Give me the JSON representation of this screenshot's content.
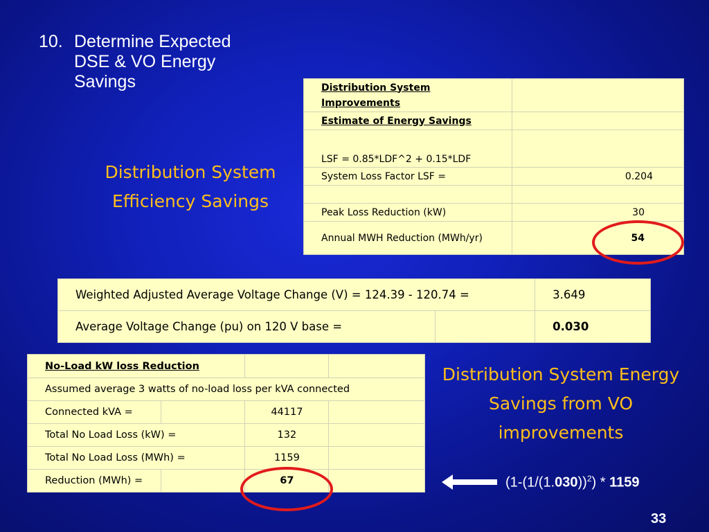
{
  "heading": {
    "number": "10.",
    "text": "Determine Expected DSE & VO Energy Savings"
  },
  "dse_label": "Distribution System Efficiency Savings",
  "vo_label": "Distribution System Energy Savings from VO improvements",
  "dse_table": {
    "title": "Distribution System Improvements",
    "subtitle": "Estimate of Energy Savings",
    "formula": "LSF = 0.85*LDF^2 + 0.15*LDF",
    "lsf_label": "System Loss Factor LSF =",
    "lsf_value": "0.204",
    "peak_label": "Peak Loss Reduction (kW)",
    "peak_value": "30",
    "annual_label": "Annual MWH Reduction (MWh/yr)",
    "annual_value": "54"
  },
  "voltage_table": {
    "row1_label": "Weighted Adjusted Average Voltage Change (V) = 124.39 - 120.74 =",
    "row1_value": "3.649",
    "row2_label": "Average Voltage Change (pu) on 120 V base =",
    "row2_value": "0.030"
  },
  "noload_table": {
    "title": "No-Load kW loss Reduction",
    "assumption": "Assumed average 3 watts of no-load loss per kVA connected",
    "kva_label": "Connected kVA =",
    "kva_value": "44117",
    "kw_label": "Total No Load Loss (kW) =",
    "kw_value": "132",
    "mwh_label": "Total No Load Loss (MWh) =",
    "mwh_value": "1159",
    "reduction_label": "Reduction (MWh) =",
    "reduction_value": "67"
  },
  "formula": {
    "part1": "(1-(1/(1.",
    "bold1": "030",
    "part2": "))",
    "sup": "2",
    "part3": ") * ",
    "bold2": "1159"
  },
  "page_number": "33",
  "colors": {
    "background": "#1020b8",
    "accent": "#ffbf1a",
    "table_fill": "#ffffc4",
    "highlight_ring": "#e11b1b"
  }
}
